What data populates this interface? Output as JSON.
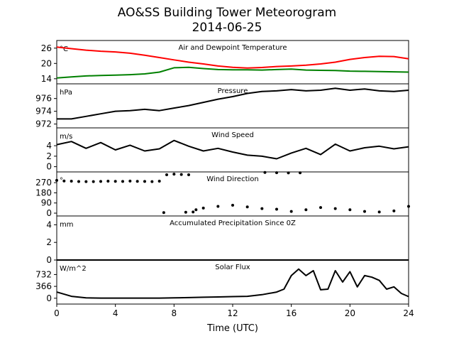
{
  "title": "AO&SS Building Tower Meteorogram",
  "subtitle": "2014-06-25",
  "colors": {
    "temperature": "#ff0000",
    "dewpoint": "#008000",
    "default": "#000000"
  },
  "chart_data": [
    {
      "type": "line",
      "title": "Air and Dewpoint Temperature",
      "unit": "°C",
      "xlim": [
        0,
        24
      ],
      "ylim": [
        12,
        29
      ],
      "yticks": [
        "26",
        "20",
        "14"
      ],
      "ytick_values": [
        26,
        20,
        14
      ],
      "series": [
        {
          "color": "#ff0000",
          "x": [
            0,
            1,
            2,
            3,
            4,
            5,
            6,
            7,
            8,
            9,
            10,
            11,
            12,
            13,
            14,
            15,
            16,
            17,
            18,
            19,
            20,
            21,
            22,
            23,
            24
          ],
          "y": [
            26.4,
            25.8,
            25.2,
            24.8,
            24.5,
            24.0,
            23.2,
            22.3,
            21.4,
            20.5,
            19.8,
            19.0,
            18.5,
            18.2,
            18.4,
            18.8,
            19.0,
            19.3,
            19.8,
            20.5,
            21.6,
            22.3,
            22.8,
            22.7,
            21.8
          ]
        },
        {
          "color": "#008000",
          "x": [
            0,
            1,
            2,
            3,
            4,
            5,
            6,
            7,
            8,
            9,
            10,
            11,
            12,
            13,
            14,
            15,
            16,
            17,
            18,
            19,
            20,
            21,
            22,
            23,
            24
          ],
          "y": [
            14.3,
            14.7,
            15.1,
            15.3,
            15.4,
            15.6,
            15.9,
            16.6,
            18.3,
            18.5,
            18.0,
            17.6,
            17.5,
            17.5,
            17.4,
            17.6,
            17.8,
            17.4,
            17.3,
            17.2,
            17.0,
            16.9,
            16.8,
            16.7,
            16.6
          ]
        }
      ]
    },
    {
      "type": "line",
      "title": "Pressure",
      "unit": "hPa",
      "xlim": [
        0,
        24
      ],
      "ylim": [
        971.4,
        978.3
      ],
      "yticks": [
        "976",
        "974",
        "972"
      ],
      "ytick_values": [
        976,
        974,
        972
      ],
      "series": [
        {
          "color": "#000000",
          "x": [
            0,
            1,
            2,
            3,
            4,
            5,
            6,
            7,
            8,
            9,
            10,
            11,
            12,
            13,
            14,
            15,
            16,
            17,
            18,
            19,
            20,
            21,
            22,
            23,
            24
          ],
          "y": [
            972.8,
            972.8,
            973.2,
            973.6,
            974.0,
            974.1,
            974.3,
            974.1,
            974.5,
            974.9,
            975.4,
            975.9,
            976.3,
            976.8,
            977.1,
            977.2,
            977.4,
            977.2,
            977.3,
            977.6,
            977.3,
            977.5,
            977.2,
            977.1,
            977.3
          ]
        }
      ]
    },
    {
      "type": "line",
      "title": "Wind Speed",
      "unit": "m/s",
      "xlim": [
        0,
        24
      ],
      "ylim": [
        -1,
        7.4
      ],
      "yticks": [
        "4",
        "2",
        "0"
      ],
      "ytick_values": [
        4,
        2,
        0
      ],
      "series": [
        {
          "color": "#000000",
          "x": [
            0,
            1,
            2,
            3,
            4,
            5,
            6,
            7,
            8,
            9,
            10,
            11,
            12,
            13,
            14,
            15,
            16,
            17,
            18,
            19,
            20,
            21,
            22,
            23,
            24
          ],
          "y": [
            4.2,
            4.8,
            3.5,
            4.6,
            3.2,
            4.1,
            3.0,
            3.4,
            5.0,
            3.9,
            3.0,
            3.5,
            2.8,
            2.2,
            2.0,
            1.5,
            2.6,
            3.5,
            2.3,
            4.3,
            3.0,
            3.6,
            3.9,
            3.4,
            3.8
          ]
        }
      ]
    },
    {
      "type": "scatter",
      "title": "Wind Direction",
      "unit": "°",
      "xlim": [
        0,
        24
      ],
      "ylim": [
        -25,
        365
      ],
      "yticks": [
        "270",
        "180",
        "90",
        "0"
      ],
      "ytick_values": [
        270,
        180,
        90,
        0
      ],
      "series": [
        {
          "color": "#000000",
          "x": [
            0,
            0.5,
            1,
            1.5,
            2,
            2.5,
            3,
            3.5,
            4,
            4.5,
            5,
            5.5,
            6,
            6.5,
            7,
            7.5,
            8,
            8.5,
            9,
            9.5,
            10,
            11,
            12,
            13,
            14,
            15,
            16,
            17,
            18,
            19,
            20,
            21,
            22,
            23,
            24
          ],
          "y": [
            290,
            285,
            283,
            280,
            279,
            279,
            281,
            283,
            282,
            281,
            284,
            282,
            281,
            279,
            283,
            340,
            345,
            342,
            340,
            30,
            45,
            60,
            70,
            55,
            40,
            35,
            15,
            30,
            50,
            40,
            30,
            15,
            10,
            20,
            60
          ]
        },
        {
          "color": "#000000",
          "x": [
            7.3,
            8.8,
            9.3,
            14.2,
            15,
            15.8,
            16.6
          ],
          "y": [
            5,
            8,
            10,
            360,
            358,
            356,
            357
          ]
        }
      ]
    },
    {
      "type": "line",
      "title": "Accumulated Precipitation Since 0Z",
      "unit": "mm",
      "xlim": [
        0,
        24
      ],
      "ylim": [
        0,
        5
      ],
      "yticks": [
        "4",
        "2",
        "0"
      ],
      "ytick_values": [
        4,
        2,
        0
      ],
      "series": [
        {
          "color": "#000000",
          "x": [
            0,
            24
          ],
          "y": [
            0,
            0
          ]
        }
      ]
    },
    {
      "type": "line",
      "title": "Solar Flux",
      "unit": "W/m^2",
      "xlim": [
        0,
        24
      ],
      "ylim": [
        -180,
        1180
      ],
      "yticks": [
        "732",
        "366",
        "0"
      ],
      "ytick_values": [
        732,
        366,
        0
      ],
      "series": [
        {
          "color": "#000000",
          "x": [
            0,
            1,
            2,
            3,
            4,
            5,
            6,
            7,
            8,
            9,
            10,
            11,
            12,
            13,
            14,
            15,
            15.5,
            16,
            16.5,
            17,
            17.5,
            18,
            18.5,
            19,
            19.5,
            20,
            20.5,
            21,
            21.5,
            22,
            22.5,
            23,
            23.5,
            24
          ],
          "y": [
            190,
            60,
            10,
            5,
            5,
            5,
            5,
            5,
            10,
            20,
            30,
            40,
            50,
            60,
            110,
            190,
            280,
            700,
            900,
            700,
            850,
            260,
            280,
            850,
            500,
            820,
            350,
            700,
            650,
            550,
            280,
            350,
            150,
            50
          ]
        }
      ]
    }
  ],
  "xaxis": {
    "label": "Time (UTC)",
    "ticks": [
      "0",
      "4",
      "8",
      "12",
      "16",
      "20",
      "24"
    ],
    "tick_values": [
      0,
      4,
      8,
      12,
      16,
      20,
      24
    ]
  }
}
